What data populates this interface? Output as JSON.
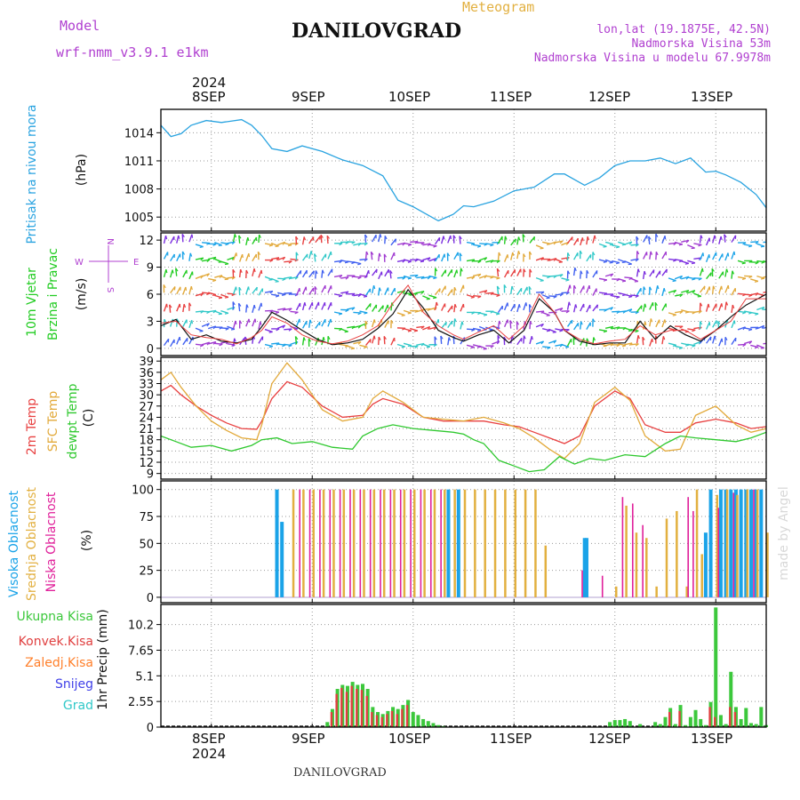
{
  "header": {
    "model_label": "Model",
    "model_name": "wrf-nmm_v3.9.1 e1km",
    "title": "DANILOVGRAD",
    "subtitle": "Meteogram",
    "coords": "lon,lat (19.1875E, 42.5N)",
    "elevation": "Nadmorska Visina 53m",
    "model_elevation": "Nadmorska Visina u modelu 67.9978m",
    "footer": "DANILOVGRAD",
    "credit": "made by Angel"
  },
  "time_axis": {
    "year": "2024",
    "days": [
      "8SEP",
      "9SEP",
      "10SEP",
      "11SEP",
      "12SEP",
      "13SEP"
    ],
    "day_positions": [
      0.5,
      1.5,
      2.5,
      3.5,
      4.5,
      5.5
    ],
    "range": [
      0.0,
      6.0
    ]
  },
  "colors": {
    "pressure": "#29a3e0",
    "wind_label": "#22cc22",
    "temp2m": "#e84040",
    "sfc": "#e2a93a",
    "dewpt": "#2ec82e",
    "high_cloud": "#1aa3e8",
    "mid_cloud": "#e2b040",
    "low_cloud": "#e0209a",
    "total_precip": "#3cc83c",
    "convective": "#e04040",
    "frozen": "#ff7f2a",
    "snow": "#4040e8",
    "graupel": "#30c8c8"
  },
  "chart_data": [
    {
      "type": "line",
      "id": "pressure",
      "ylabel_a": "Pritisak na nivou mora",
      "ylabel_b": "(hPa)",
      "yticks": [
        "1005",
        "1008",
        "1011",
        "1014"
      ],
      "ylim": [
        1003.5,
        1016.5
      ],
      "series": [
        {
          "color": "#29a3e0",
          "x": [
            0.0,
            0.1,
            0.2,
            0.3,
            0.45,
            0.6,
            0.8,
            0.9,
            1.0,
            1.1,
            1.25,
            1.4,
            1.6,
            1.8,
            2.0,
            2.2,
            2.35,
            2.5,
            2.6,
            2.75,
            2.9,
            3.0,
            3.1,
            3.3,
            3.5,
            3.7,
            3.9,
            4.0,
            4.2,
            4.35,
            4.5,
            4.65,
            4.8,
            4.95,
            5.1,
            5.25,
            5.4,
            5.5,
            5.6,
            5.75,
            5.9,
            6.0
          ],
          "y": [
            1014.8,
            1013.6,
            1013.9,
            1014.8,
            1015.3,
            1015.1,
            1015.4,
            1014.8,
            1013.7,
            1012.3,
            1012.0,
            1012.6,
            1012.0,
            1011.1,
            1010.5,
            1009.4,
            1006.8,
            1006.1,
            1005.5,
            1004.6,
            1005.3,
            1006.2,
            1006.1,
            1006.7,
            1007.8,
            1008.2,
            1009.6,
            1009.6,
            1008.4,
            1009.2,
            1010.5,
            1011.0,
            1011.0,
            1011.3,
            1010.7,
            1011.3,
            1009.8,
            1009.9,
            1009.5,
            1008.7,
            1007.4,
            1006.0
          ]
        }
      ]
    },
    {
      "type": "line",
      "id": "wind",
      "ylabel_a": "10m Vjetar",
      "ylabel_b": "Brzina i Pravac",
      "ylabel_c": "(m/s)",
      "compass_n": "N",
      "compass_s": "S",
      "compass_e": "E",
      "compass_w": "W",
      "yticks": [
        "0",
        "3",
        "6",
        "9",
        "12"
      ],
      "ylim": [
        -0.8,
        12.8
      ],
      "series": [
        {
          "color": "#111111",
          "x": [
            0.0,
            0.15,
            0.3,
            0.45,
            0.6,
            0.75,
            0.9,
            1.0,
            1.1,
            1.25,
            1.4,
            1.55,
            1.7,
            1.85,
            2.0,
            2.15,
            2.3,
            2.45,
            2.6,
            2.75,
            2.9,
            3.0,
            3.15,
            3.3,
            3.45,
            3.6,
            3.75,
            3.9,
            4.0,
            4.15,
            4.3,
            4.45,
            4.6,
            4.75,
            4.9,
            5.05,
            5.2,
            5.35,
            5.5,
            5.65,
            5.8,
            6.0
          ],
          "y": [
            2.5,
            3.2,
            1.0,
            1.5,
            0.8,
            0.6,
            1.0,
            2.4,
            4.0,
            3.1,
            2.0,
            1.0,
            0.4,
            0.6,
            1.0,
            2.2,
            3.8,
            6.5,
            4.5,
            2.0,
            1.2,
            0.8,
            1.5,
            2.0,
            0.6,
            2.0,
            5.5,
            4.0,
            2.0,
            0.8,
            0.4,
            0.6,
            0.6,
            3.0,
            1.0,
            2.5,
            1.5,
            0.8,
            2.0,
            3.5,
            4.8,
            6.0
          ]
        },
        {
          "color": "#e84040",
          "x": [
            0.0,
            0.15,
            0.3,
            0.45,
            0.6,
            0.75,
            0.9,
            1.0,
            1.1,
            1.25,
            1.4,
            1.55,
            1.7,
            1.85,
            2.0,
            2.15,
            2.3,
            2.45,
            2.6,
            2.75,
            2.9,
            3.0,
            3.15,
            3.3,
            3.45,
            3.6,
            3.75,
            3.9,
            4.0,
            4.15,
            4.3,
            4.45,
            4.6,
            4.75,
            4.9,
            5.05,
            5.2,
            5.35,
            5.5,
            5.65,
            5.8,
            6.0
          ],
          "y": [
            2.8,
            3.0,
            1.5,
            1.2,
            1.0,
            0.5,
            1.2,
            2.0,
            3.5,
            2.8,
            1.5,
            0.8,
            0.5,
            0.8,
            1.5,
            2.5,
            5.0,
            7.0,
            4.0,
            2.5,
            1.5,
            1.0,
            1.8,
            2.5,
            1.0,
            2.5,
            6.0,
            4.0,
            2.0,
            1.0,
            0.5,
            0.8,
            1.0,
            2.5,
            1.5,
            2.0,
            2.0,
            1.0,
            2.0,
            3.0,
            5.5,
            5.5
          ]
        }
      ]
    },
    {
      "type": "line",
      "id": "temperature",
      "ylabel_a": "2m Temp",
      "ylabel_b": "SFC Temp",
      "ylabel_c": "dewpt Temp",
      "ylabel_d": "(C)",
      "yticks": [
        "9",
        "12",
        "15",
        "18",
        "21",
        "24",
        "27",
        "30",
        "33",
        "36",
        "39"
      ],
      "ylim": [
        7.5,
        40.0
      ],
      "series": [
        {
          "name": "2m Temp",
          "color": "#e84040",
          "x": [
            0.0,
            0.1,
            0.2,
            0.35,
            0.5,
            0.65,
            0.8,
            0.95,
            1.0,
            1.1,
            1.25,
            1.4,
            1.6,
            1.8,
            2.0,
            2.1,
            2.2,
            2.4,
            2.6,
            2.8,
            3.0,
            3.2,
            3.4,
            3.55,
            3.7,
            3.85,
            4.0,
            4.15,
            4.3,
            4.5,
            4.65,
            4.8,
            5.0,
            5.15,
            5.3,
            5.5,
            5.7,
            5.85,
            6.0
          ],
          "y": [
            31.0,
            32.5,
            30.0,
            27.0,
            24.5,
            22.5,
            21.0,
            20.8,
            23.0,
            29.0,
            33.5,
            32.0,
            27.0,
            24.0,
            24.5,
            27.5,
            29.0,
            27.5,
            24.0,
            23.0,
            23.0,
            23.0,
            22.0,
            21.5,
            20.0,
            18.5,
            17.0,
            19.0,
            27.0,
            31.0,
            29.0,
            22.0,
            20.0,
            20.0,
            22.5,
            23.5,
            22.5,
            21.0,
            21.5
          ]
        },
        {
          "name": "SFC Temp",
          "color": "#e2a93a",
          "x": [
            0.0,
            0.1,
            0.2,
            0.35,
            0.5,
            0.65,
            0.8,
            0.95,
            1.0,
            1.1,
            1.25,
            1.4,
            1.6,
            1.8,
            2.0,
            2.1,
            2.2,
            2.4,
            2.6,
            2.8,
            3.0,
            3.2,
            3.4,
            3.55,
            3.7,
            3.85,
            4.0,
            4.15,
            4.3,
            4.5,
            4.65,
            4.8,
            5.0,
            5.15,
            5.3,
            5.5,
            5.7,
            5.85,
            6.0
          ],
          "y": [
            34.0,
            36.0,
            32.0,
            27.0,
            23.0,
            20.5,
            18.5,
            18.0,
            22.0,
            33.0,
            38.5,
            34.0,
            26.0,
            23.0,
            24.0,
            29.0,
            31.0,
            28.0,
            24.0,
            23.5,
            23.0,
            24.0,
            22.5,
            21.0,
            18.5,
            15.5,
            13.0,
            17.0,
            28.0,
            32.0,
            28.5,
            19.0,
            15.0,
            15.5,
            24.5,
            27.0,
            22.0,
            20.0,
            21.0
          ]
        },
        {
          "name": "dewpt Temp",
          "color": "#2ec82e",
          "x": [
            0.0,
            0.15,
            0.3,
            0.5,
            0.7,
            0.9,
            1.0,
            1.15,
            1.3,
            1.5,
            1.7,
            1.9,
            2.0,
            2.15,
            2.3,
            2.5,
            2.7,
            2.9,
            3.0,
            3.1,
            3.2,
            3.35,
            3.5,
            3.65,
            3.8,
            3.95,
            4.1,
            4.25,
            4.4,
            4.6,
            4.8,
            5.0,
            5.15,
            5.3,
            5.5,
            5.7,
            5.85,
            6.0
          ],
          "y": [
            19.0,
            17.5,
            16.0,
            16.5,
            15.0,
            16.5,
            18.0,
            18.5,
            17.0,
            17.5,
            16.0,
            15.5,
            19.0,
            21.0,
            22.0,
            21.0,
            20.5,
            20.0,
            19.5,
            18.0,
            17.0,
            12.5,
            11.0,
            9.5,
            10.0,
            13.5,
            11.5,
            13.0,
            12.5,
            14.0,
            13.5,
            17.0,
            19.0,
            18.5,
            18.0,
            17.5,
            18.5,
            20.0
          ]
        }
      ]
    },
    {
      "type": "bar",
      "id": "clouds",
      "ylabel_a": "Visoka Oblacnost",
      "ylabel_b": "Srednja Oblacnost",
      "ylabel_c": "Niska Oblacnost",
      "ylabel_d": "(%)",
      "yticks": [
        "0",
        "25",
        "50",
        "75",
        "100"
      ],
      "ylim": [
        -5,
        108
      ],
      "series": [
        {
          "name": "Visoka Oblacnost",
          "color": "#1aa3e8",
          "x": [
            1.15,
            1.2,
            2.85,
            2.95,
            4.2,
            4.22,
            5.4,
            5.45,
            5.55,
            5.6,
            5.65,
            5.7,
            5.75,
            5.8,
            5.85,
            5.9,
            5.95
          ],
          "values": [
            100,
            70,
            100,
            100,
            55,
            55,
            60,
            100,
            100,
            100,
            100,
            100,
            100,
            100,
            100,
            100,
            100
          ]
        },
        {
          "name": "Srednja Oblacnost",
          "color": "#e2b040",
          "x": [
            1.3,
            1.4,
            1.5,
            1.6,
            1.7,
            1.8,
            1.9,
            2.0,
            2.1,
            2.2,
            2.3,
            2.4,
            2.5,
            2.6,
            2.7,
            2.8,
            2.9,
            3.0,
            3.1,
            3.2,
            3.3,
            3.4,
            3.5,
            3.6,
            3.7,
            3.8,
            4.5,
            4.6,
            4.7,
            4.8,
            4.9,
            5.0,
            5.1,
            5.2,
            5.3,
            5.35,
            5.5,
            5.6,
            5.7,
            5.8,
            5.9,
            6.0
          ],
          "values": [
            100,
            100,
            100,
            100,
            100,
            100,
            100,
            100,
            100,
            100,
            100,
            100,
            100,
            100,
            100,
            100,
            100,
            100,
            100,
            100,
            100,
            100,
            100,
            100,
            100,
            48,
            10,
            85,
            60,
            55,
            10,
            73,
            80,
            10,
            100,
            40,
            95,
            100,
            95,
            100,
            100,
            60
          ]
        },
        {
          "name": "Niska Oblacnost",
          "color": "#e0209a",
          "x": [
            1.35,
            1.45,
            1.55,
            1.65,
            1.75,
            1.85,
            1.95,
            2.05,
            2.15,
            2.25,
            2.35,
            2.45,
            2.55,
            2.65,
            2.75,
            4.15,
            4.35,
            4.55,
            4.65,
            4.75,
            5.2,
            5.25,
            5.5,
            5.65,
            5.85
          ],
          "values": [
            100,
            100,
            100,
            100,
            100,
            100,
            100,
            100,
            100,
            100,
            100,
            100,
            100,
            100,
            100,
            25,
            20,
            93,
            87,
            67,
            93,
            80,
            83,
            97,
            100
          ]
        }
      ]
    },
    {
      "type": "bar",
      "id": "precip",
      "ylabel": "1hr Precip (mm)",
      "legend": [
        "Ukupna Kisa",
        "Konvek.Kisa",
        "Zaledj.Kisa",
        "Snijeg",
        "Grad"
      ],
      "yticks": [
        "0",
        "2.55",
        "5.1",
        "7.65",
        "10.2"
      ],
      "ylim": [
        0,
        12.2
      ],
      "series": [
        {
          "name": "Ukupna Kisa",
          "color": "#3cc83c",
          "x": [
            1.65,
            1.7,
            1.75,
            1.8,
            1.85,
            1.9,
            1.95,
            2.0,
            2.05,
            2.1,
            2.15,
            2.2,
            2.25,
            2.3,
            2.35,
            2.4,
            2.45,
            2.5,
            2.55,
            2.6,
            2.65,
            2.7,
            2.75,
            2.8,
            4.45,
            4.5,
            4.55,
            4.6,
            4.65,
            4.75,
            4.9,
            4.95,
            5.0,
            5.05,
            5.1,
            5.15,
            5.2,
            5.25,
            5.3,
            5.35,
            5.4,
            5.45,
            5.5,
            5.55,
            5.6,
            5.65,
            5.7,
            5.75,
            5.8,
            5.85,
            5.9,
            5.95,
            6.0
          ],
          "values": [
            0.5,
            1.8,
            3.8,
            4.2,
            4.1,
            4.5,
            4.2,
            4.3,
            3.8,
            2.0,
            1.5,
            1.3,
            1.6,
            2.0,
            1.8,
            2.2,
            2.7,
            1.5,
            1.2,
            0.8,
            0.6,
            0.4,
            0.2,
            0.1,
            0.5,
            0.7,
            0.7,
            0.8,
            0.6,
            0.3,
            0.5,
            0.3,
            1.0,
            1.9,
            0.3,
            2.2,
            0.2,
            1.0,
            1.7,
            0.8,
            0.2,
            2.5,
            11.9,
            1.2,
            0.3,
            5.5,
            2.0,
            0.8,
            1.9,
            0.4,
            0.3,
            2.0,
            0.2
          ]
        },
        {
          "name": "Konvek.Kisa",
          "color": "#e04040",
          "x": [
            1.7,
            1.75,
            1.8,
            1.85,
            1.9,
            1.95,
            2.0,
            2.05,
            2.1,
            2.15,
            2.2,
            2.25,
            2.3,
            2.35,
            2.4,
            2.45,
            5.05,
            5.15,
            5.45,
            5.5,
            5.65,
            5.7
          ],
          "values": [
            1.5,
            3.3,
            3.9,
            3.5,
            4.1,
            3.8,
            3.7,
            3.1,
            1.5,
            1.2,
            1.0,
            1.3,
            1.6,
            1.3,
            1.8,
            2.2,
            1.5,
            1.6,
            2.0,
            1.0,
            2.0,
            1.5
          ]
        }
      ]
    }
  ]
}
